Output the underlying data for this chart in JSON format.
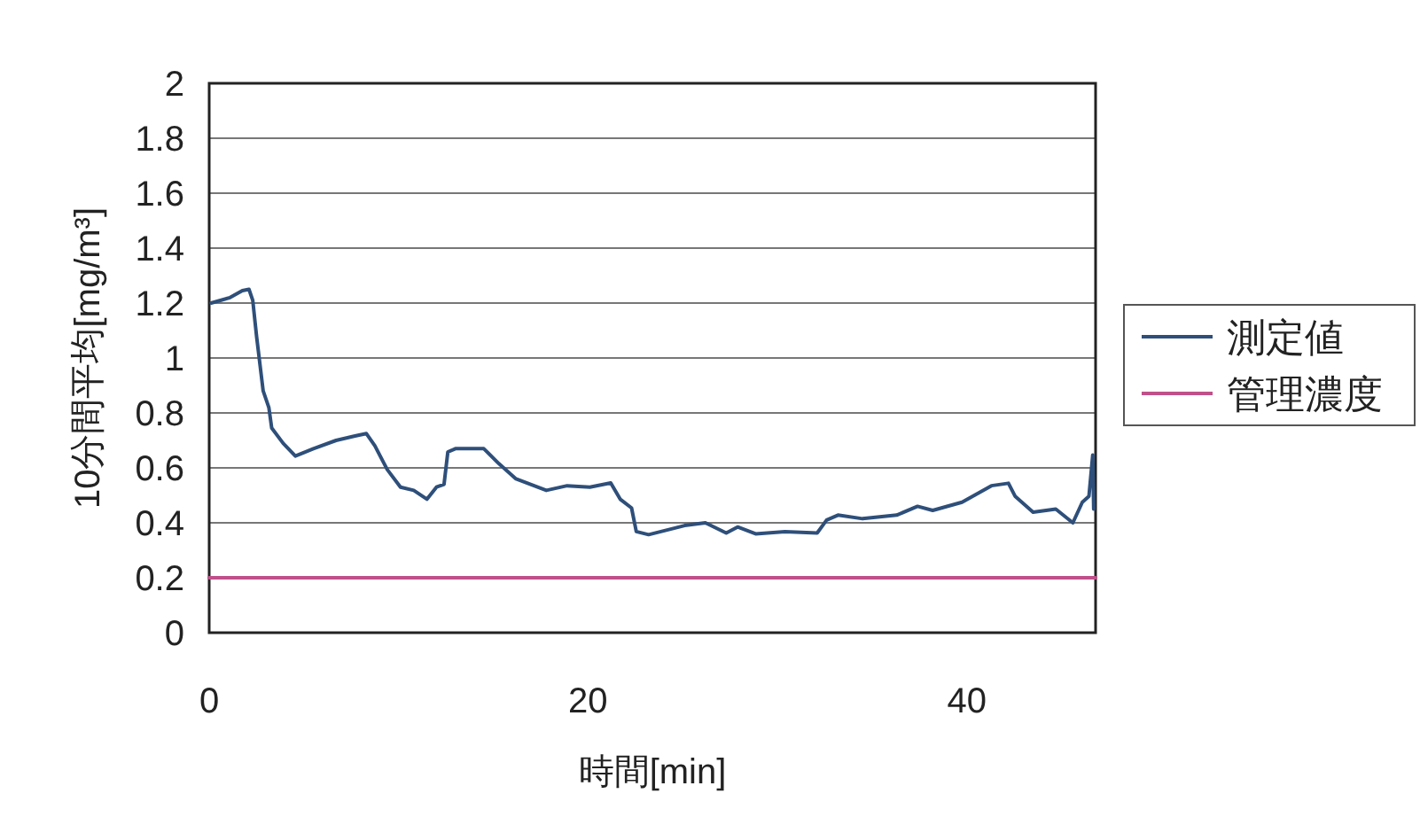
{
  "chart_data": {
    "type": "line",
    "xlabel": "時間[min]",
    "ylabel": "10分間平均[mg/m³]",
    "xlim": [
      0,
      46.8
    ],
    "ylim": [
      0,
      2
    ],
    "xticks": [
      0,
      20,
      40
    ],
    "yticks": [
      0,
      0.2,
      0.4,
      0.6,
      0.8,
      1,
      1.2,
      1.4,
      1.6,
      1.8,
      2
    ],
    "grid": "y",
    "legend": "right",
    "series": [
      {
        "name": "測定値",
        "color": "#2e4f7a",
        "x": [
          0.1,
          1.1,
          1.75,
          2.1,
          2.3,
          2.5,
          2.85,
          3.15,
          3.3,
          3.9,
          4.55,
          5.5,
          6.7,
          7.7,
          8.3,
          8.75,
          9.4,
          10.1,
          10.8,
          11.5,
          12.0,
          12.4,
          12.6,
          13.0,
          14.5,
          15.3,
          16.2,
          17.8,
          18.9,
          20.1,
          21.2,
          21.7,
          22.3,
          22.55,
          23.2,
          25.1,
          26.2,
          27.3,
          27.9,
          28.85,
          30.4,
          32.1,
          32.6,
          33.2,
          34.5,
          36.3,
          37.4,
          38.2,
          39.75,
          41.3,
          42.2,
          42.55,
          43.5,
          44.7,
          45.6,
          46.1,
          46.45,
          46.65,
          46.7
        ],
        "values": [
          1.2,
          1.22,
          1.245,
          1.25,
          1.21,
          1.08,
          0.88,
          0.82,
          0.745,
          0.69,
          0.643,
          0.67,
          0.7,
          0.716,
          0.725,
          0.68,
          0.594,
          0.53,
          0.518,
          0.486,
          0.53,
          0.54,
          0.658,
          0.67,
          0.67,
          0.615,
          0.56,
          0.518,
          0.535,
          0.53,
          0.545,
          0.486,
          0.454,
          0.368,
          0.357,
          0.39,
          0.4,
          0.363,
          0.385,
          0.36,
          0.368,
          0.363,
          0.41,
          0.428,
          0.415,
          0.428,
          0.46,
          0.445,
          0.475,
          0.535,
          0.544,
          0.497,
          0.439,
          0.45,
          0.4,
          0.475,
          0.497,
          0.647,
          0.45
        ]
      },
      {
        "name": "管理濃度",
        "color": "#c0508a",
        "x": [
          0,
          46.8
        ],
        "values": [
          0.2,
          0.2
        ]
      }
    ]
  }
}
